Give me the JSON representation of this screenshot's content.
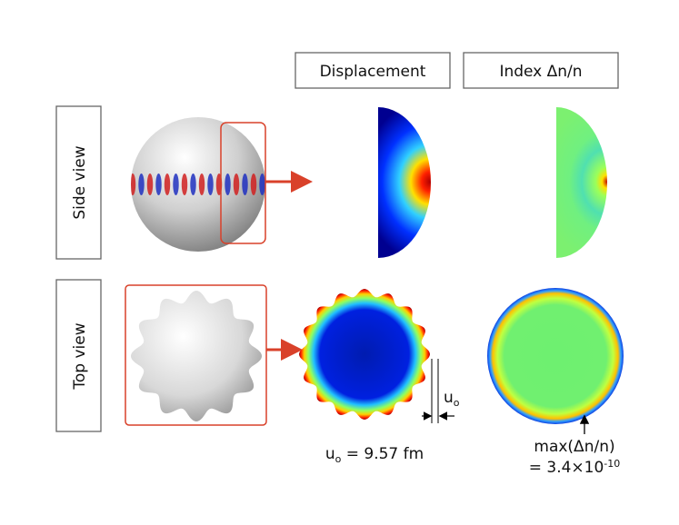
{
  "headers": [
    "Displacement",
    "Index Δn/n"
  ],
  "row_labels": [
    "Side view",
    "Top view"
  ],
  "annotations": {
    "u_marker": {
      "base": "u",
      "sub": "o"
    },
    "displacement_amplitude": {
      "base": "u",
      "sub": "o",
      "rest": " = 9.57 fm"
    },
    "index_max": {
      "line1": "max(Δn/n)",
      "line2": "= 3.4×10",
      "sup": "-10"
    }
  }
}
